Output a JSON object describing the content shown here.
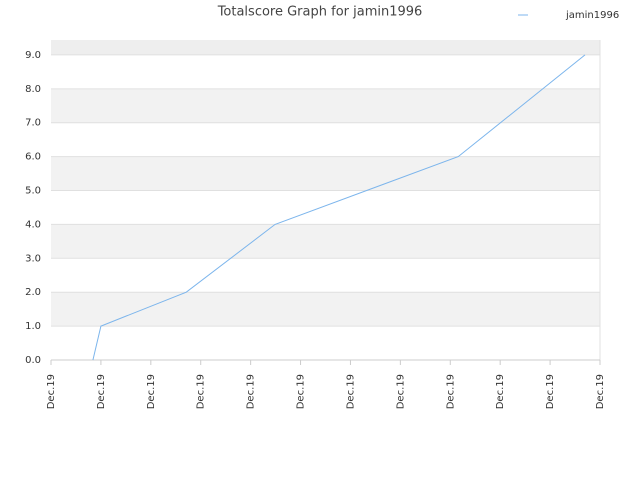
{
  "chart_data": {
    "type": "line",
    "title": "Totalscore Graph for jamin1996",
    "x": [
      0.84,
      1.0,
      2.71,
      4.49,
      8.16,
      10.7
    ],
    "series": [
      {
        "name": "jamin1996",
        "color": "#7cb5ec",
        "values": [
          0,
          1,
          2,
          4,
          6,
          9
        ]
      }
    ],
    "xlim": [
      0,
      11
    ],
    "xticks": [
      {
        "value": 0,
        "label": "Dec.19"
      },
      {
        "value": 1,
        "label": "Dec.19"
      },
      {
        "value": 2,
        "label": "Dec.19"
      },
      {
        "value": 3,
        "label": "Dec.19"
      },
      {
        "value": 4,
        "label": "Dec.19"
      },
      {
        "value": 5,
        "label": "Dec.19"
      },
      {
        "value": 6,
        "label": "Dec.19"
      },
      {
        "value": 7,
        "label": "Dec.19"
      },
      {
        "value": 8,
        "label": "Dec.19"
      },
      {
        "value": 9,
        "label": "Dec.19"
      },
      {
        "value": 10,
        "label": "Dec.19"
      },
      {
        "value": 11,
        "label": "Dec.19"
      }
    ],
    "ylim": [
      0,
      9.44
    ],
    "yticks": [
      {
        "value": 0,
        "label": "0.0"
      },
      {
        "value": 1,
        "label": "1.0"
      },
      {
        "value": 2,
        "label": "2.0"
      },
      {
        "value": 3,
        "label": "3.0"
      },
      {
        "value": 4,
        "label": "4.0"
      },
      {
        "value": 5,
        "label": "5.0"
      },
      {
        "value": 6,
        "label": "6.0"
      },
      {
        "value": 7,
        "label": "7.0"
      },
      {
        "value": 8,
        "label": "8.0"
      },
      {
        "value": 9,
        "label": "9.0"
      }
    ],
    "grid": true,
    "legend": "top-right"
  }
}
